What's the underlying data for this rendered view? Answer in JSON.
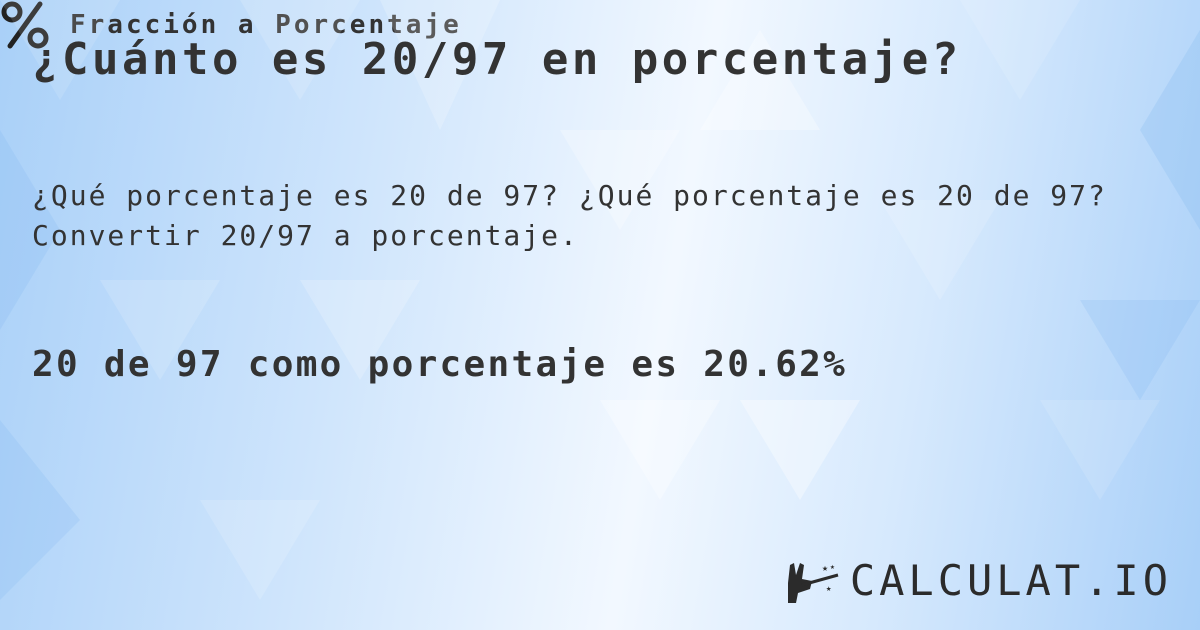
{
  "title": "¿Cuánto es 20/97 en porcentaje?",
  "subtitle_line1": "¿Qué porcentaje es 20 de 97? ¿Qué porcentaje es 20 de 97?",
  "subtitle_line2": "Convertir 20/97 a porcentaje.",
  "result": "20 de 97 como porcentaje es 20.62%",
  "footer": {
    "icon": "percent-icon",
    "label": "Fracción a Porcentaje"
  },
  "logo": {
    "icon": "magic-wand-hand-icon",
    "text": "CALCULAT.IO"
  },
  "colors": {
    "text": "#333333",
    "background": "#a9d0f8"
  }
}
